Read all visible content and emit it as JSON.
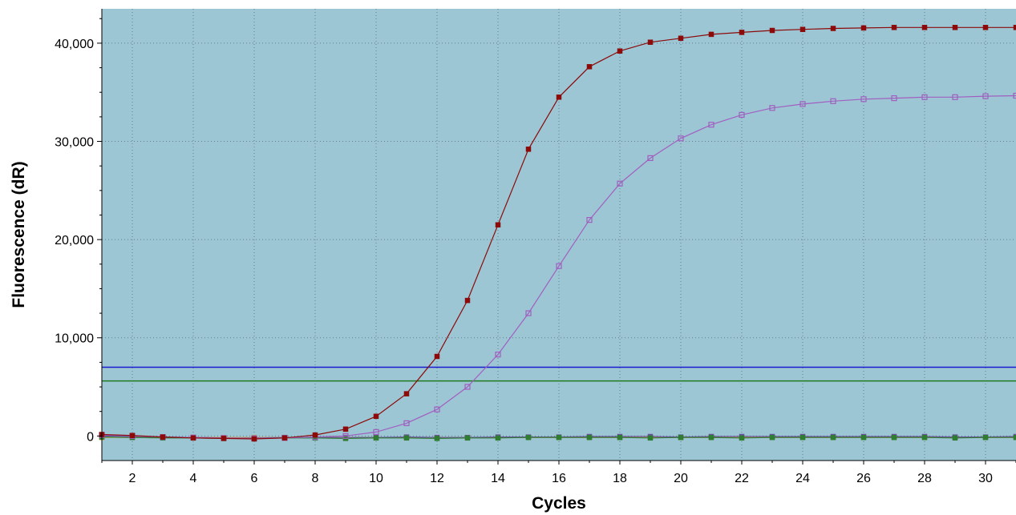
{
  "chart_data": {
    "type": "line",
    "title": "",
    "xlabel": "Cycles",
    "ylabel": "Fluorescence (dR)",
    "xlim": [
      1,
      31
    ],
    "ylim": [
      -2500,
      43500
    ],
    "x_ticks": [
      2,
      4,
      6,
      8,
      10,
      12,
      14,
      16,
      18,
      20,
      22,
      24,
      26,
      28,
      30
    ],
    "y_ticks": [
      0,
      10000,
      20000,
      30000,
      40000
    ],
    "x_tick_labels": [
      "2",
      "4",
      "6",
      "8",
      "10",
      "12",
      "14",
      "16",
      "18",
      "20",
      "22",
      "24",
      "26",
      "28",
      "30"
    ],
    "y_tick_labels": [
      "0",
      "10,000",
      "20,000",
      "30,000",
      "40,000"
    ],
    "grid": true,
    "legend": "none",
    "colors": {
      "plot_background": "#9dc6d4",
      "grid": "#5e7f8b"
    },
    "x": [
      1,
      2,
      3,
      4,
      5,
      6,
      7,
      8,
      9,
      10,
      11,
      12,
      13,
      14,
      15,
      16,
      17,
      18,
      19,
      20,
      21,
      22,
      23,
      24,
      25,
      26,
      27,
      28,
      29,
      30,
      31
    ],
    "series": [
      {
        "color": "#8b0a0a",
        "marker": "filled-square",
        "values": [
          150,
          50,
          -100,
          -200,
          -250,
          -300,
          -200,
          100,
          700,
          2000,
          4300,
          8100,
          13800,
          21500,
          29200,
          34500,
          37600,
          39200,
          40100,
          40500,
          40900,
          41100,
          41300,
          41400,
          41500,
          41550,
          41600,
          41600,
          41600,
          41600,
          41600
        ]
      },
      {
        "color": "#a05fc0",
        "marker": "open-square",
        "values": [
          100,
          0,
          -100,
          -150,
          -200,
          -250,
          -200,
          -100,
          0,
          400,
          1300,
          2700,
          5000,
          8300,
          12500,
          17300,
          22000,
          25700,
          28300,
          30300,
          31700,
          32700,
          33400,
          33800,
          34100,
          34300,
          34400,
          34500,
          34500,
          34600,
          34650
        ]
      },
      {
        "color": "#2e7d32",
        "marker": "filled-square",
        "values": [
          -100,
          -150,
          -200,
          -200,
          -250,
          -250,
          -200,
          -200,
          -250,
          -200,
          -200,
          -250,
          -200,
          -200,
          -150,
          -150,
          -150,
          -150,
          -200,
          -150,
          -150,
          -200,
          -150,
          -150,
          -150,
          -150,
          -150,
          -150,
          -200,
          -150,
          -150
        ]
      },
      {
        "color": "#6a4fa0",
        "marker": "filled-square",
        "values": [
          0,
          -50,
          -100,
          -150,
          -200,
          -200,
          -150,
          -150,
          -150,
          -150,
          -100,
          -150,
          -150,
          -100,
          -100,
          -100,
          -50,
          -50,
          -50,
          -100,
          -50,
          -50,
          -50,
          -50,
          -50,
          -50,
          -50,
          -50,
          -100,
          -100,
          -50
        ]
      },
      {
        "color": "#e0a030",
        "marker": "filled-square",
        "values": [
          -150,
          -150,
          -150,
          -150,
          -150,
          -150,
          -150,
          -150,
          -150,
          -150,
          -150,
          -150,
          -150,
          -150,
          -150,
          -150,
          -150,
          -150,
          -150,
          -150,
          -150,
          -150,
          -150,
          -150,
          -150,
          -150,
          -150,
          -150,
          -150,
          -150,
          -150
        ]
      }
    ],
    "thresholds": [
      {
        "color": "#1a1ad0",
        "value": 7000
      },
      {
        "color": "#1f7a1f",
        "value": 5600
      }
    ]
  }
}
